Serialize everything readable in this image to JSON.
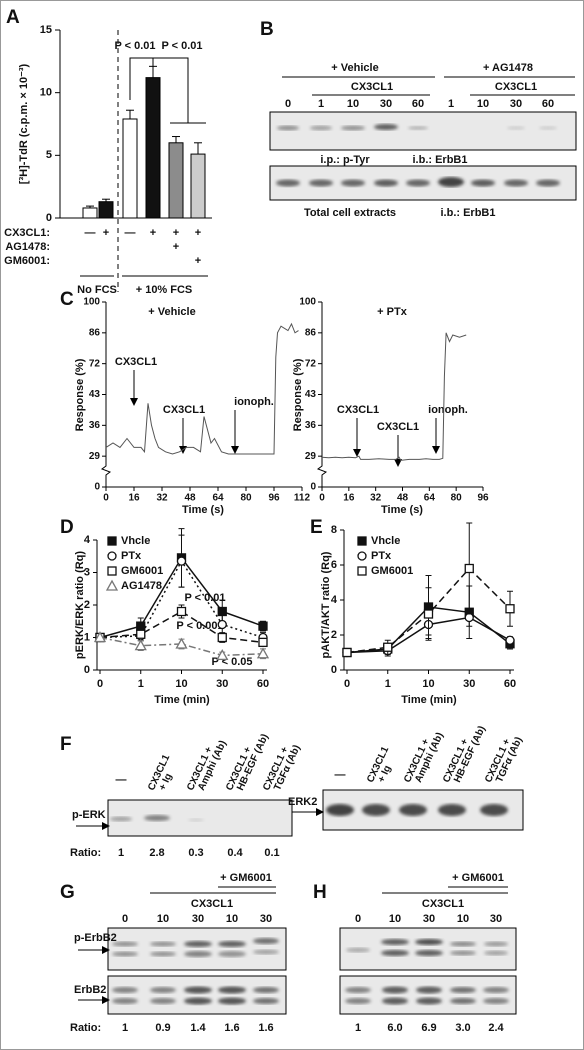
{
  "panels": {
    "A": {
      "letter": "A",
      "type": "bar",
      "ylabel": "[³H]-TdR (c.p.m. × 10⁻³)",
      "ylim": [
        0,
        15
      ],
      "yticks": [
        0,
        5,
        10,
        15
      ],
      "values": [
        0.8,
        1.3,
        7.9,
        11.2,
        6.0,
        5.1
      ],
      "errors": [
        0.15,
        0.2,
        0.7,
        0.9,
        0.5,
        0.9
      ],
      "colors": [
        "#ffffff",
        "#111111",
        "#ffffff",
        "#111111",
        "#8c8c8c",
        "#cccccc"
      ],
      "annotations": [
        "P < 0.01",
        "P < 0.01"
      ],
      "treatments": [
        {
          "label": "CX3CL1:",
          "marks": [
            "—",
            "+",
            "—",
            "+",
            "+",
            "+"
          ]
        },
        {
          "label": "AG1478:",
          "marks": [
            null,
            null,
            null,
            null,
            "+",
            null
          ]
        },
        {
          "label": "GM6001:",
          "marks": [
            null,
            null,
            null,
            null,
            null,
            "+"
          ]
        }
      ],
      "groups": [
        "No FCS",
        "+ 10% FCS"
      ]
    },
    "B": {
      "letter": "B",
      "conditions": [
        "+ Vehicle",
        "+ AG1478"
      ],
      "treatment": [
        "CX3CL1",
        "CX3CL1"
      ],
      "lanes": [
        "0",
        "1",
        "10",
        "30",
        "60",
        "1",
        "10",
        "30",
        "60"
      ],
      "blot1": [
        "i.p.: p-Tyr",
        "i.b.: ErbB1"
      ],
      "blot2": [
        "Total cell extracts",
        "i.b.: ErbB1"
      ]
    },
    "C": {
      "letter": "C",
      "ylabel": "Response (%)",
      "xlabel": "Time (s)",
      "charts": [
        {
          "type": "line",
          "title": "+ Vehicle",
          "xlim": [
            0,
            112
          ],
          "xticks": [
            0,
            16,
            32,
            48,
            64,
            80,
            96,
            112
          ],
          "yticks": [
            0,
            29,
            36,
            43,
            72,
            86,
            100
          ],
          "annotations": [
            "CX3CL1",
            "CX3CL1",
            "ionoph."
          ],
          "x": [
            0,
            4,
            8,
            12,
            16,
            20,
            22,
            24,
            26,
            28,
            30,
            34,
            38,
            42,
            46,
            50,
            54,
            56,
            58,
            60,
            62,
            66,
            70,
            74,
            80,
            86,
            90,
            94,
            96,
            97,
            98,
            100,
            104,
            106,
            108,
            110
          ],
          "values": [
            31,
            32,
            31,
            33,
            31,
            31,
            30,
            41,
            36,
            33,
            31,
            30,
            29.5,
            30,
            31,
            31,
            30,
            38,
            35,
            32,
            33,
            30,
            29.5,
            29.5,
            29.5,
            29.5,
            29.5,
            29.5,
            29.5,
            75,
            86,
            89,
            87,
            90,
            86,
            87
          ]
        },
        {
          "type": "line",
          "title": "+ PTx",
          "xlim": [
            0,
            96
          ],
          "xticks": [
            0,
            16,
            32,
            48,
            64,
            80,
            96
          ],
          "yticks": [
            0,
            29,
            36,
            43,
            72,
            86,
            100
          ],
          "annotations": [
            "CX3CL1",
            "CX3CL1",
            "ionoph."
          ],
          "x": [
            0,
            4,
            8,
            12,
            16,
            20,
            22,
            23,
            28,
            34,
            40,
            44,
            46,
            47,
            52,
            58,
            62,
            66,
            70,
            72,
            73,
            74,
            76,
            78,
            82,
            86
          ],
          "values": [
            28,
            27.5,
            28,
            27.5,
            28,
            27.5,
            29,
            26,
            26,
            26.5,
            26,
            26,
            28,
            25,
            26,
            26,
            26.5,
            26,
            26,
            27,
            60,
            86,
            82,
            85,
            84,
            85
          ]
        }
      ]
    },
    "D": {
      "letter": "D",
      "type": "line",
      "ylabel": "pERK/ERK ratio (Rq)",
      "xlabel": "Time (min)",
      "categories": [
        "0",
        "1",
        "10",
        "30",
        "60"
      ],
      "ylim": [
        0,
        4
      ],
      "yticks": [
        0,
        1,
        2,
        3,
        4
      ],
      "annotations": [
        "P < 0.01",
        "P < 0.001",
        "P < 0.05"
      ],
      "series": [
        {
          "name": "Vhcle",
          "color": "#111111",
          "marker": "square-filled",
          "dash": "solid",
          "values": [
            1,
            1.35,
            3.45,
            1.8,
            1.35
          ],
          "errors": [
            0,
            0.25,
            0.9,
            0.35,
            0.15
          ]
        },
        {
          "name": "PTx",
          "color": "#111111",
          "marker": "circle-open",
          "dash": "dotted",
          "values": [
            1,
            1.05,
            3.35,
            1.4,
            1.0
          ],
          "errors": [
            0,
            0.15,
            0.8,
            0.3,
            0.15
          ]
        },
        {
          "name": "GM6001",
          "color": "#111111",
          "marker": "square-open",
          "dash": "dashed",
          "values": [
            1,
            1.1,
            1.8,
            1.0,
            0.85
          ],
          "errors": [
            0,
            0.1,
            0.2,
            0.15,
            0.1
          ]
        },
        {
          "name": "AG1478",
          "color": "#777777",
          "marker": "triangle-open",
          "dash": "dashdot",
          "values": [
            1,
            0.75,
            0.8,
            0.45,
            0.5
          ],
          "errors": [
            0,
            0.15,
            0.15,
            0.1,
            0.15
          ]
        }
      ]
    },
    "E": {
      "letter": "E",
      "type": "line",
      "ylabel": "pAKT/AKT ratio (Rq)",
      "xlabel": "Time (min)",
      "categories": [
        "0",
        "1",
        "10",
        "30",
        "60"
      ],
      "ylim": [
        0,
        8
      ],
      "yticks": [
        0,
        2,
        4,
        6,
        8
      ],
      "series": [
        {
          "name": "Vhcle",
          "color": "#111111",
          "marker": "square-filled",
          "dash": "solid",
          "values": [
            1,
            1.2,
            3.6,
            3.3,
            1.5
          ],
          "errors": [
            0,
            0.3,
            1.8,
            1.5,
            0.3
          ]
        },
        {
          "name": "PTx",
          "color": "#111111",
          "marker": "circle-open",
          "dash": "solid",
          "values": [
            1,
            1.1,
            2.6,
            3.0,
            1.7
          ],
          "errors": [
            0,
            0.3,
            0.6,
            0.5,
            0.2
          ]
        },
        {
          "name": "GM6001",
          "color": "#111111",
          "marker": "square-open",
          "dash": "dashed",
          "values": [
            1,
            1.3,
            3.2,
            5.8,
            3.5
          ],
          "errors": [
            0,
            0.4,
            1.5,
            2.6,
            1.0
          ]
        }
      ]
    },
    "F": {
      "letter": "F",
      "lanes": [
        [
          "—"
        ],
        [
          "CX3CL1",
          "+ Ig"
        ],
        [
          "CX3CL1 +",
          "Amphi (Ab)"
        ],
        [
          "CX3CL1 +",
          "HB-EGF (Ab)"
        ],
        [
          "CX3CL1 +",
          "TGFα (Ab)"
        ]
      ],
      "left_blot": "p-ERK",
      "right_blot": "ERK2",
      "ratio_label": "Ratio:",
      "ratios": [
        "1",
        "2.8",
        "0.3",
        "0.4",
        "0.1"
      ]
    },
    "G": {
      "letter": "G",
      "condition": "+ GM6001",
      "treatment": "CX3CL1",
      "lanes": [
        "0",
        "10",
        "30",
        "10",
        "30"
      ],
      "blots": [
        "p-ErbB2",
        "ErbB2"
      ],
      "ratio_label": "Ratio:",
      "ratios": [
        "1",
        "0.9",
        "1.4",
        "1.6",
        "1.6"
      ]
    },
    "H": {
      "letter": "H",
      "condition": "+ GM6001",
      "treatment": "CX3CL1",
      "lanes": [
        "0",
        "10",
        "30",
        "10",
        "30"
      ],
      "ratios": [
        "1",
        "6.0",
        "6.9",
        "3.0",
        "2.4"
      ]
    }
  }
}
